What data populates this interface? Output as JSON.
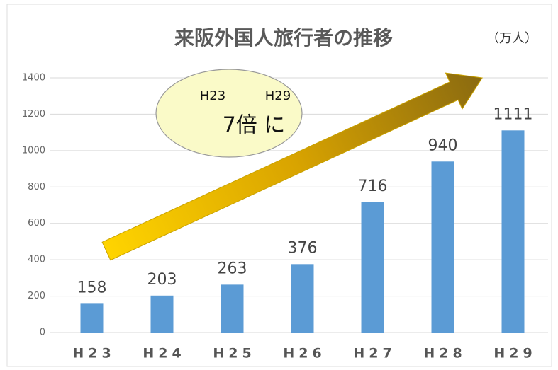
{
  "chart_data": {
    "type": "bar",
    "title": "来阪外国人旅行者の推移",
    "unit_label": "（万人）",
    "categories": [
      "H23",
      "H24",
      "H25",
      "H26",
      "H27",
      "H28",
      "H29"
    ],
    "values": [
      158,
      203,
      263,
      376,
      716,
      940,
      1111
    ],
    "color": "#5b9bd5",
    "ylim": [
      0,
      1400
    ],
    "yticks": [
      0,
      200,
      400,
      600,
      800,
      1000,
      1200,
      1400
    ],
    "grid": true,
    "annotations": [
      "H23",
      "H29",
      "7倍 に"
    ]
  }
}
